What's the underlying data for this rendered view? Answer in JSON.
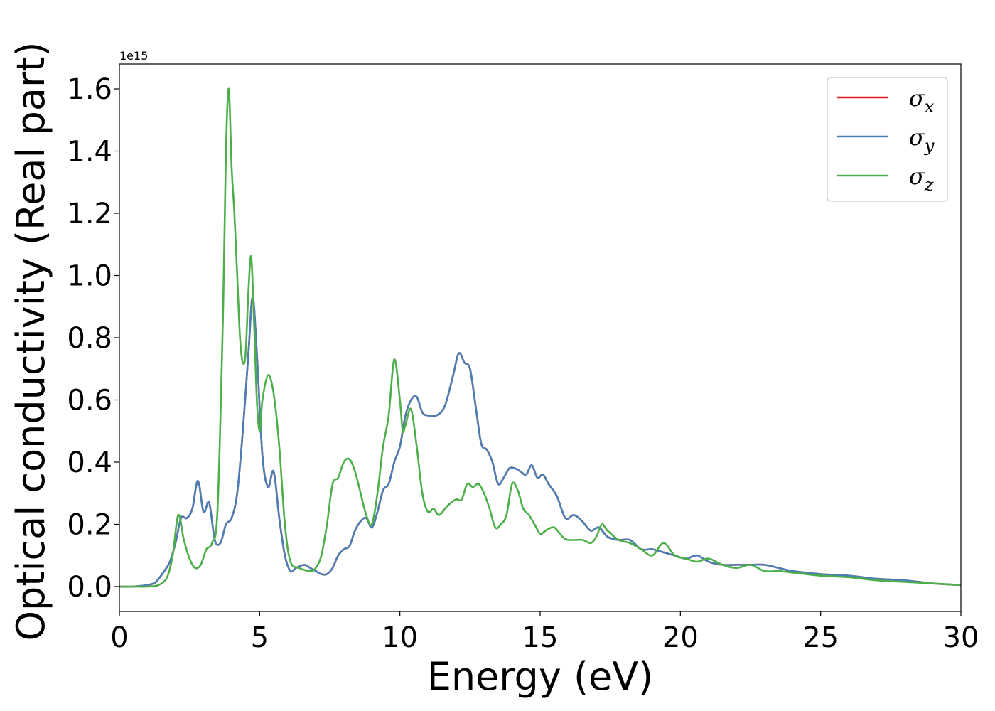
{
  "chart_data": {
    "type": "line",
    "xlabel": "Energy (eV)",
    "ylabel": "Optical conductivity (Real part)",
    "y_offset_label": "1e15",
    "xlim": [
      0,
      30
    ],
    "ylim": [
      -0.08,
      1.68
    ],
    "xticks": [
      0,
      5,
      10,
      15,
      20,
      25,
      30
    ],
    "xtick_labels": [
      "0",
      "5",
      "10",
      "15",
      "20",
      "25",
      "30"
    ],
    "yticks": [
      0.0,
      0.2,
      0.4,
      0.6,
      0.8,
      1.0,
      1.2,
      1.4,
      1.6
    ],
    "ytick_labels": [
      "0.0",
      "0.2",
      "0.4",
      "0.6",
      "0.8",
      "1.0",
      "1.2",
      "1.4",
      "1.6"
    ],
    "grid": false,
    "legend_position": "top-right",
    "series": [
      {
        "name": "σx",
        "legend_base": "σ",
        "legend_sub": "x",
        "color": "#e41a1c",
        "x": [
          0,
          0.5,
          1.0,
          1.3,
          1.6,
          1.8,
          2.0,
          2.2,
          2.4,
          2.6,
          2.8,
          3.0,
          3.2,
          3.4,
          3.6,
          3.8,
          4.0,
          4.2,
          4.4,
          4.6,
          4.75,
          4.9,
          5.1,
          5.3,
          5.5,
          5.7,
          5.9,
          6.1,
          6.3,
          6.6,
          6.8,
          7.0,
          7.2,
          7.4,
          7.6,
          7.8,
          8.0,
          8.2,
          8.4,
          8.6,
          8.8,
          9.0,
          9.2,
          9.4,
          9.6,
          9.8,
          10.0,
          10.2,
          10.4,
          10.6,
          10.8,
          11.0,
          11.3,
          11.6,
          11.9,
          12.1,
          12.3,
          12.5,
          12.7,
          12.9,
          13.1,
          13.3,
          13.5,
          13.7,
          13.9,
          14.1,
          14.3,
          14.5,
          14.7,
          14.9,
          15.1,
          15.3,
          15.6,
          15.9,
          16.2,
          16.5,
          16.8,
          17.1,
          17.4,
          17.8,
          18.2,
          18.6,
          19.0,
          19.4,
          19.8,
          20.2,
          20.6,
          21.0,
          21.5,
          22.0,
          22.5,
          23.0,
          23.5,
          24.0,
          25.0,
          26.0,
          27.0,
          28.0,
          29.0,
          30.0
        ],
        "y": [
          0.0,
          0.0,
          0.005,
          0.015,
          0.05,
          0.08,
          0.14,
          0.22,
          0.22,
          0.25,
          0.34,
          0.24,
          0.27,
          0.15,
          0.14,
          0.2,
          0.22,
          0.3,
          0.5,
          0.75,
          0.93,
          0.75,
          0.42,
          0.32,
          0.37,
          0.22,
          0.1,
          0.05,
          0.06,
          0.07,
          0.06,
          0.05,
          0.04,
          0.04,
          0.06,
          0.1,
          0.12,
          0.13,
          0.18,
          0.21,
          0.22,
          0.19,
          0.24,
          0.31,
          0.33,
          0.4,
          0.45,
          0.55,
          0.6,
          0.61,
          0.56,
          0.55,
          0.55,
          0.58,
          0.68,
          0.75,
          0.72,
          0.7,
          0.58,
          0.46,
          0.44,
          0.4,
          0.33,
          0.35,
          0.38,
          0.38,
          0.37,
          0.36,
          0.39,
          0.35,
          0.36,
          0.33,
          0.29,
          0.22,
          0.23,
          0.21,
          0.18,
          0.19,
          0.16,
          0.15,
          0.15,
          0.12,
          0.12,
          0.11,
          0.1,
          0.09,
          0.1,
          0.08,
          0.07,
          0.07,
          0.07,
          0.07,
          0.06,
          0.05,
          0.04,
          0.035,
          0.025,
          0.02,
          0.01,
          0.005
        ]
      },
      {
        "name": "σy",
        "legend_base": "σ",
        "legend_sub": "y",
        "color": "#4a7fb5",
        "x": [
          0,
          0.5,
          1.0,
          1.3,
          1.6,
          1.8,
          2.0,
          2.2,
          2.4,
          2.6,
          2.8,
          3.0,
          3.2,
          3.4,
          3.6,
          3.8,
          4.0,
          4.2,
          4.4,
          4.6,
          4.75,
          4.9,
          5.1,
          5.3,
          5.5,
          5.7,
          5.9,
          6.1,
          6.3,
          6.6,
          6.8,
          7.0,
          7.2,
          7.4,
          7.6,
          7.8,
          8.0,
          8.2,
          8.4,
          8.6,
          8.8,
          9.0,
          9.2,
          9.4,
          9.6,
          9.8,
          10.0,
          10.2,
          10.4,
          10.6,
          10.8,
          11.0,
          11.3,
          11.6,
          11.9,
          12.1,
          12.3,
          12.5,
          12.7,
          12.9,
          13.1,
          13.3,
          13.5,
          13.7,
          13.9,
          14.1,
          14.3,
          14.5,
          14.7,
          14.9,
          15.1,
          15.3,
          15.6,
          15.9,
          16.2,
          16.5,
          16.8,
          17.1,
          17.4,
          17.8,
          18.2,
          18.6,
          19.0,
          19.4,
          19.8,
          20.2,
          20.6,
          21.0,
          21.5,
          22.0,
          22.5,
          23.0,
          23.5,
          24.0,
          25.0,
          26.0,
          27.0,
          28.0,
          29.0,
          30.0
        ],
        "y": [
          0.0,
          0.0,
          0.005,
          0.015,
          0.05,
          0.08,
          0.14,
          0.22,
          0.22,
          0.25,
          0.34,
          0.24,
          0.27,
          0.15,
          0.14,
          0.2,
          0.22,
          0.3,
          0.5,
          0.75,
          0.93,
          0.75,
          0.42,
          0.32,
          0.37,
          0.22,
          0.1,
          0.05,
          0.06,
          0.07,
          0.06,
          0.05,
          0.04,
          0.04,
          0.06,
          0.1,
          0.12,
          0.13,
          0.18,
          0.21,
          0.22,
          0.19,
          0.24,
          0.31,
          0.33,
          0.4,
          0.45,
          0.55,
          0.6,
          0.61,
          0.56,
          0.55,
          0.55,
          0.58,
          0.68,
          0.75,
          0.72,
          0.7,
          0.58,
          0.46,
          0.44,
          0.4,
          0.33,
          0.35,
          0.38,
          0.38,
          0.37,
          0.36,
          0.39,
          0.35,
          0.36,
          0.33,
          0.29,
          0.22,
          0.23,
          0.21,
          0.18,
          0.19,
          0.16,
          0.15,
          0.15,
          0.12,
          0.12,
          0.11,
          0.1,
          0.09,
          0.1,
          0.08,
          0.07,
          0.07,
          0.07,
          0.07,
          0.06,
          0.05,
          0.04,
          0.035,
          0.025,
          0.02,
          0.01,
          0.005
        ]
      },
      {
        "name": "σz",
        "legend_base": "σ",
        "legend_sub": "z",
        "color": "#4daf4a",
        "x": [
          0,
          0.5,
          1.0,
          1.4,
          1.7,
          1.9,
          2.1,
          2.3,
          2.5,
          2.7,
          2.9,
          3.1,
          3.3,
          3.5,
          3.7,
          3.8,
          3.9,
          4.0,
          4.1,
          4.2,
          4.3,
          4.4,
          4.5,
          4.6,
          4.7,
          4.8,
          4.9,
          5.0,
          5.1,
          5.3,
          5.5,
          5.7,
          5.9,
          6.1,
          6.4,
          6.8,
          7.0,
          7.2,
          7.4,
          7.6,
          7.8,
          8.0,
          8.2,
          8.4,
          8.6,
          8.8,
          9.0,
          9.2,
          9.4,
          9.6,
          9.8,
          10.0,
          10.1,
          10.2,
          10.4,
          10.6,
          10.8,
          11.0,
          11.2,
          11.4,
          11.7,
          12.0,
          12.2,
          12.4,
          12.6,
          12.8,
          13.0,
          13.2,
          13.4,
          13.6,
          13.8,
          14.0,
          14.2,
          14.4,
          14.6,
          14.8,
          15.0,
          15.2,
          15.5,
          15.8,
          16.0,
          16.5,
          16.8,
          17.0,
          17.2,
          17.4,
          17.8,
          18.2,
          18.6,
          19.0,
          19.4,
          19.8,
          20.2,
          20.6,
          21.0,
          21.5,
          22.0,
          22.5,
          23.0,
          23.5,
          24.0,
          25.0,
          26.0,
          27.0,
          28.0,
          29.0,
          30.0
        ],
        "y": [
          0.0,
          0.0,
          0.0,
          0.005,
          0.03,
          0.1,
          0.23,
          0.15,
          0.09,
          0.06,
          0.07,
          0.12,
          0.14,
          0.25,
          0.9,
          1.4,
          1.6,
          1.35,
          1.2,
          1.0,
          0.8,
          0.72,
          0.75,
          0.95,
          1.06,
          0.85,
          0.6,
          0.5,
          0.6,
          0.68,
          0.62,
          0.45,
          0.2,
          0.08,
          0.06,
          0.05,
          0.06,
          0.1,
          0.2,
          0.33,
          0.35,
          0.4,
          0.41,
          0.37,
          0.3,
          0.23,
          0.2,
          0.3,
          0.45,
          0.55,
          0.73,
          0.6,
          0.5,
          0.52,
          0.57,
          0.45,
          0.3,
          0.24,
          0.25,
          0.23,
          0.26,
          0.28,
          0.28,
          0.33,
          0.32,
          0.33,
          0.3,
          0.25,
          0.19,
          0.2,
          0.23,
          0.33,
          0.31,
          0.25,
          0.23,
          0.2,
          0.17,
          0.18,
          0.19,
          0.16,
          0.15,
          0.15,
          0.14,
          0.16,
          0.2,
          0.18,
          0.15,
          0.14,
          0.12,
          0.1,
          0.14,
          0.1,
          0.09,
          0.08,
          0.09,
          0.07,
          0.06,
          0.07,
          0.05,
          0.05,
          0.045,
          0.035,
          0.03,
          0.02,
          0.015,
          0.01,
          0.005
        ]
      }
    ]
  }
}
